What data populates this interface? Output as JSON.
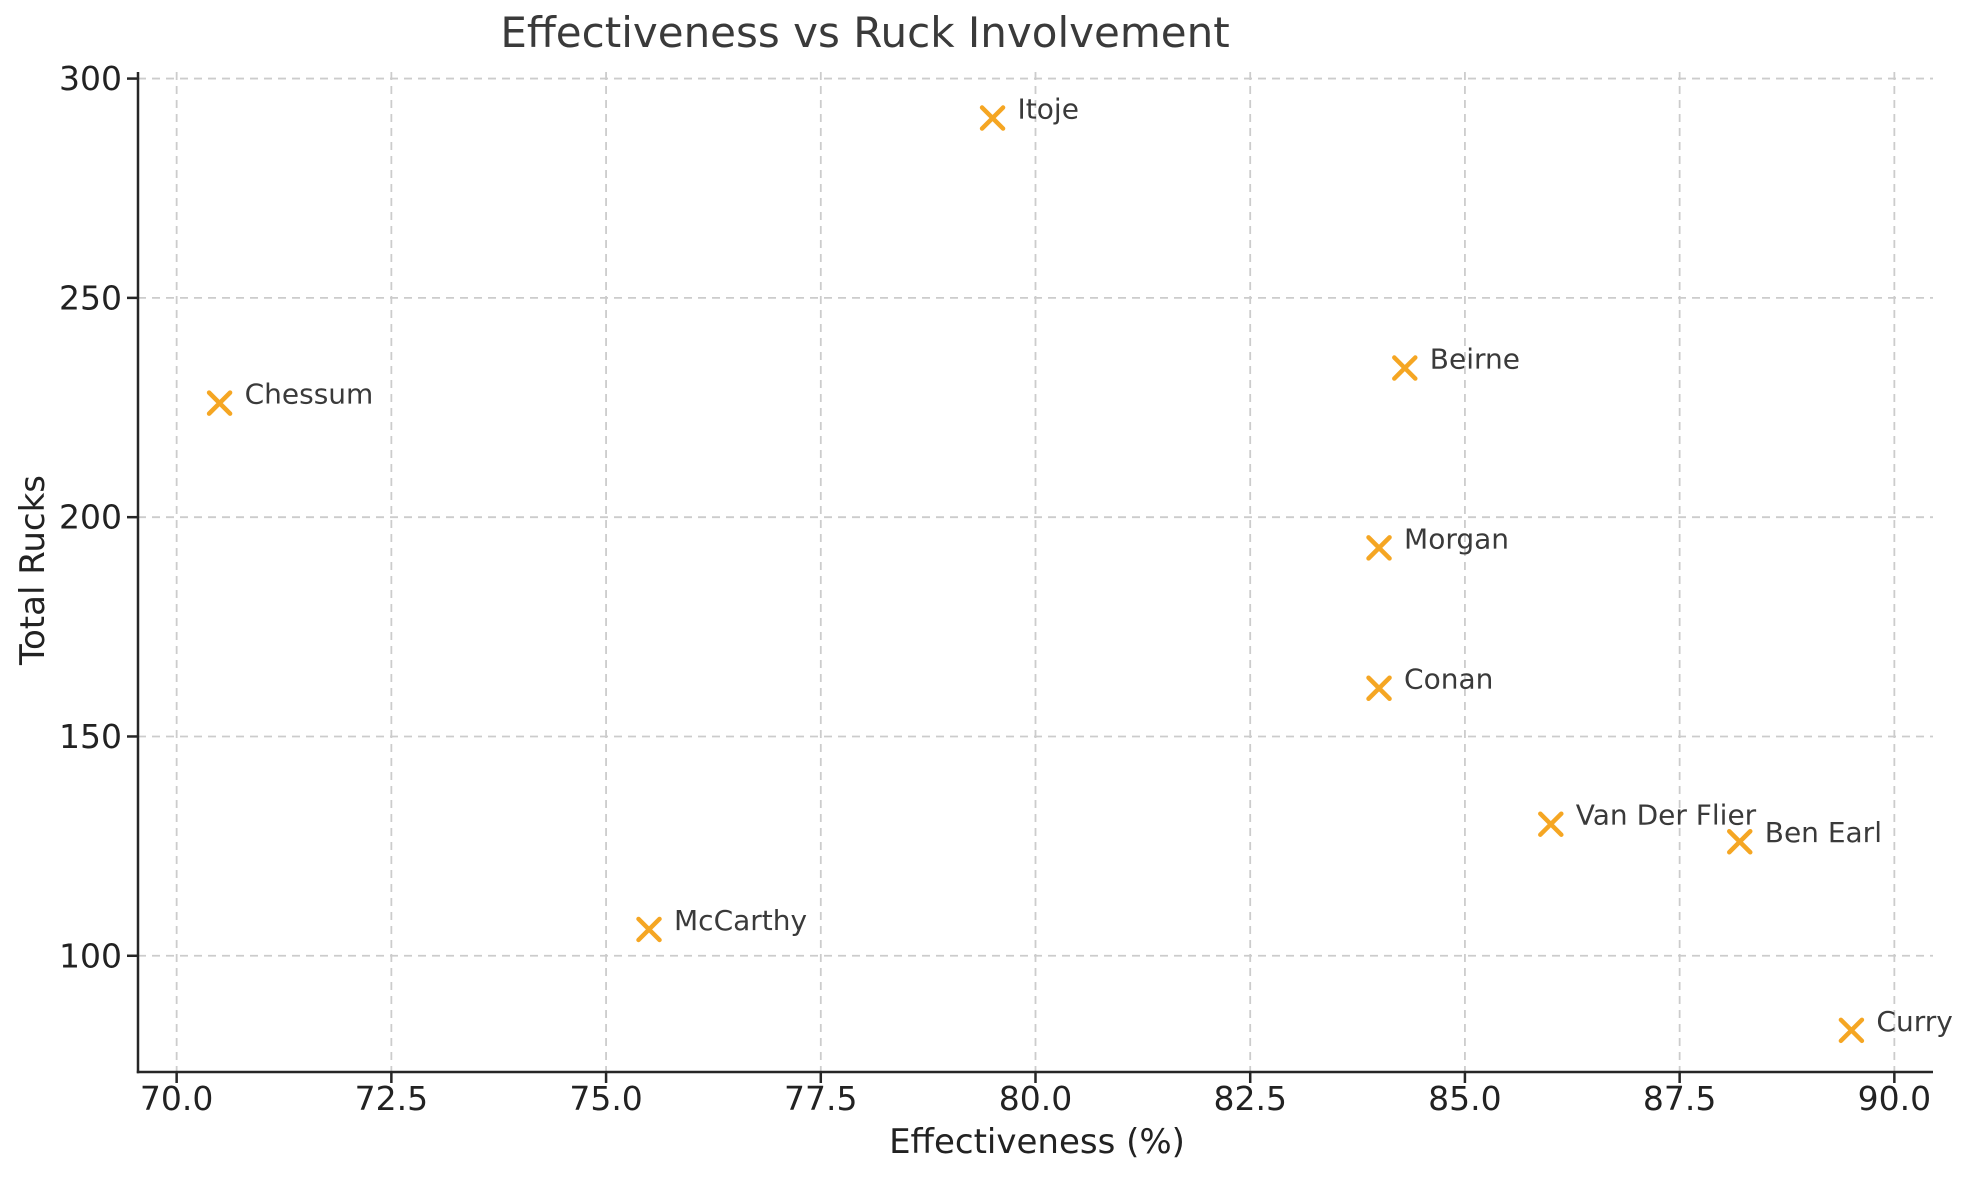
{
  "chart_data": {
    "type": "scatter",
    "title": "Effectiveness vs Ruck Involvement",
    "xlabel": "Effectiveness (%)",
    "ylabel": "Total Rucks",
    "xlim": [
      69.55,
      90.45
    ],
    "ylim": [
      73.5,
      301.5
    ],
    "x_tick_labels": [
      "70.0",
      "72.5",
      "75.0",
      "77.5",
      "80.0",
      "82.5",
      "85.0",
      "87.5",
      "90.0"
    ],
    "y_tick_labels": [
      "100",
      "150",
      "200",
      "250",
      "300"
    ],
    "grid": true,
    "grid_style": "dashed",
    "legend": "none",
    "marker": {
      "shape": "x",
      "color": "#F5A623",
      "size": 21,
      "stroke_width": 4.5
    },
    "colors": {
      "background": "#ffffff",
      "grid": "#cccccc",
      "axis": "#262626",
      "tick_label": "#222222",
      "title": "#3a3a3a",
      "annotation": "#3a3a3a"
    },
    "points": [
      {
        "label": "Chessum",
        "x": 70.5,
        "y": 226
      },
      {
        "label": "McCarthy",
        "x": 75.5,
        "y": 106
      },
      {
        "label": "Itoje",
        "x": 79.5,
        "y": 291
      },
      {
        "label": "Morgan",
        "x": 84.0,
        "y": 193
      },
      {
        "label": "Conan",
        "x": 84.0,
        "y": 161
      },
      {
        "label": "Beirne",
        "x": 84.3,
        "y": 234
      },
      {
        "label": "Van Der Flier",
        "x": 86.0,
        "y": 130
      },
      {
        "label": "Ben Earl",
        "x": 88.2,
        "y": 126
      },
      {
        "label": "Curry",
        "x": 89.5,
        "y": 83
      }
    ]
  }
}
